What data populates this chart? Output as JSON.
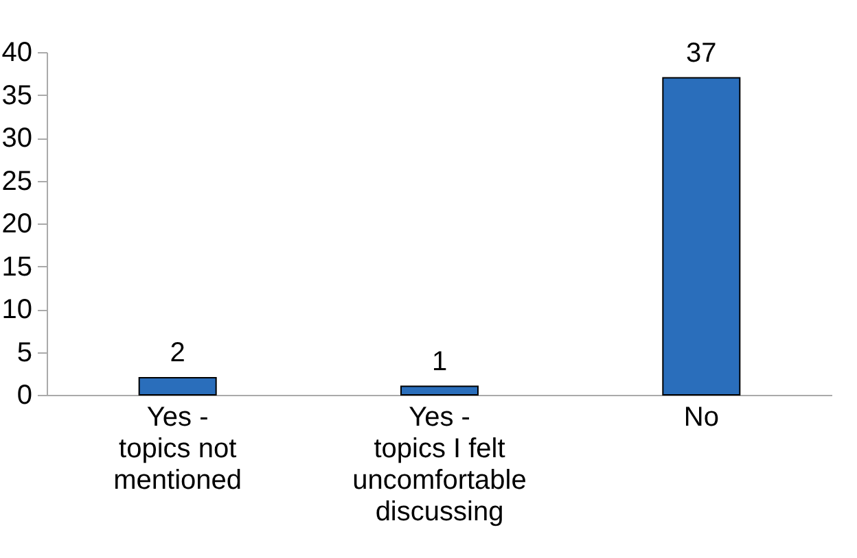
{
  "chart_data": {
    "type": "bar",
    "categories": [
      "Yes -\ntopics not\nmentioned",
      "Yes -\ntopics I felt\nuncomfortable\ndiscussing",
      "No"
    ],
    "values": [
      2,
      1,
      37
    ],
    "color": "#2a6ebb",
    "ylim": [
      0,
      40
    ],
    "yticks": [
      0,
      5,
      10,
      15,
      20,
      25,
      30,
      35,
      40
    ],
    "grid": false,
    "data_labels": true
  }
}
